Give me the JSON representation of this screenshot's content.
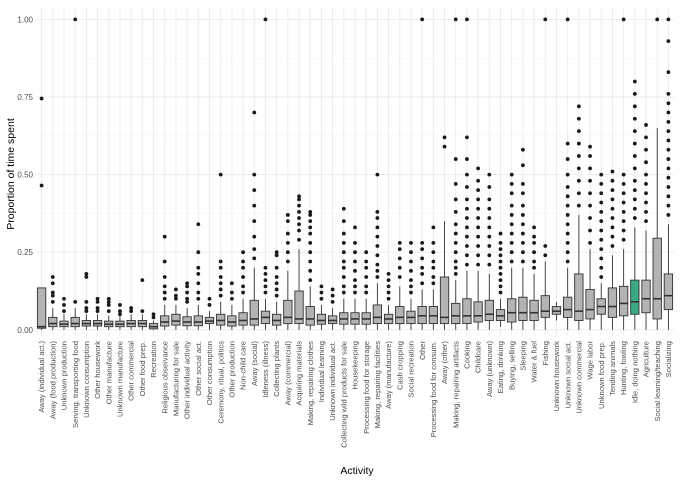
{
  "chart_data": {
    "type": "boxplot",
    "title": "",
    "xlabel": "Activity",
    "ylabel": "Proportion of time spent",
    "ylim": [
      -0.02,
      1.04
    ],
    "yticks": [
      0.0,
      0.25,
      0.5,
      0.75,
      1.0
    ],
    "ytick_labels": [
      "0.00",
      "0.25",
      "0.50",
      "0.75",
      "1.00"
    ],
    "grid": true,
    "legend": "none",
    "colors": {
      "default_fill": "#b3b3b3",
      "highlight_fill": "#3aaa86",
      "line": "#333333",
      "outlier": "#1a1a1a",
      "background": "#ffffff"
    },
    "highlight": "Idle, doing nothing",
    "categories": [
      "Away (individual act.)",
      "Away (food production)",
      "Unknown production",
      "Serving, transporting food",
      "Unknown consumption",
      "Other housework",
      "Other manufacture",
      "Unknown manufacture",
      "Other commercial",
      "Other food prep.",
      "Recreation",
      "Religious observance",
      "Manufacturing for sale",
      "Other individual activity",
      "Other social act.",
      "Other consumption",
      "Ceremony, ritual, politics",
      "Other production",
      "Non-child care",
      "Away (social)",
      "Idleness (illness)",
      "Collecting plants",
      "Away (commercial)",
      "Acquiring materials",
      "Making, repairing clothes",
      "Individual learning",
      "Unknown individual act.",
      "Collecting wild products for sale",
      "Housekeeping",
      "Processing food for storage",
      "Making, repairing facilities",
      "Away (manufacture)",
      "Cash cropping",
      "Social recreation",
      "Other",
      "Processing food for consum.",
      "Away (other)",
      "Making, repairing artifacts",
      "Cooking",
      "Childcare",
      "Away (unknown)",
      "Eating, drinking",
      "Buying, selling",
      "Sleeping",
      "Water & fuel",
      "Fishing",
      "Unknown housework",
      "Unknown social act.",
      "Unknown commercial",
      "Wage labor",
      "Unknown food prep.",
      "Tending animals",
      "Hunting, fowling",
      "Idle, doing nothing",
      "Agriculture",
      "Social learning/teaching",
      "Socializing"
    ],
    "series": [
      {
        "name": "Away (individual act.)",
        "min": 0.0,
        "q1": 0.005,
        "median": 0.01,
        "q3": 0.135,
        "max": 0.135,
        "outliers": [
          0.465,
          0.745
        ]
      },
      {
        "name": "Away (food production)",
        "min": 0.0,
        "q1": 0.01,
        "median": 0.02,
        "q3": 0.04,
        "max": 0.07,
        "outliers": [
          0.09,
          0.11,
          0.12,
          0.15,
          0.17
        ]
      },
      {
        "name": "Unknown production",
        "min": 0.0,
        "q1": 0.01,
        "median": 0.018,
        "q3": 0.028,
        "max": 0.05,
        "outliers": [
          0.06,
          0.08,
          0.1
        ]
      },
      {
        "name": "Serving, transporting food",
        "min": 0.0,
        "q1": 0.01,
        "median": 0.02,
        "q3": 0.04,
        "max": 0.07,
        "outliers": [
          0.09,
          1.0
        ]
      },
      {
        "name": "Unknown consumption",
        "min": 0.0,
        "q1": 0.012,
        "median": 0.02,
        "q3": 0.03,
        "max": 0.05,
        "outliers": [
          0.06,
          0.07,
          0.09,
          0.17,
          0.18
        ]
      },
      {
        "name": "Other housework",
        "min": 0.0,
        "q1": 0.012,
        "median": 0.02,
        "q3": 0.03,
        "max": 0.05,
        "outliers": [
          0.06,
          0.07,
          0.09,
          0.1
        ]
      },
      {
        "name": "Other manufacture",
        "min": 0.0,
        "q1": 0.01,
        "median": 0.018,
        "q3": 0.028,
        "max": 0.045,
        "outliers": [
          0.06,
          0.08,
          0.09,
          0.1
        ]
      },
      {
        "name": "Unknown manufacture",
        "min": 0.0,
        "q1": 0.01,
        "median": 0.018,
        "q3": 0.028,
        "max": 0.045,
        "outliers": [
          0.05,
          0.06,
          0.08
        ]
      },
      {
        "name": "Other commercial",
        "min": 0.0,
        "q1": 0.01,
        "median": 0.02,
        "q3": 0.03,
        "max": 0.05,
        "outliers": [
          0.06,
          0.07
        ]
      },
      {
        "name": "Other food prep.",
        "min": 0.0,
        "q1": 0.01,
        "median": 0.02,
        "q3": 0.03,
        "max": 0.05,
        "outliers": [
          0.06,
          0.16
        ]
      },
      {
        "name": "Recreation",
        "min": 0.0,
        "q1": 0.003,
        "median": 0.01,
        "q3": 0.02,
        "max": 0.03,
        "outliers": [
          0.04,
          0.05
        ]
      },
      {
        "name": "Religious observance",
        "min": 0.0,
        "q1": 0.012,
        "median": 0.025,
        "q3": 0.045,
        "max": 0.08,
        "outliers": [
          0.1,
          0.12,
          0.14,
          0.17,
          0.22,
          0.3
        ]
      },
      {
        "name": "Manufacturing for sale",
        "min": 0.0,
        "q1": 0.015,
        "median": 0.028,
        "q3": 0.05,
        "max": 0.08,
        "outliers": [
          0.1,
          0.11,
          0.13
        ]
      },
      {
        "name": "Other individual activity",
        "min": 0.0,
        "q1": 0.013,
        "median": 0.025,
        "q3": 0.042,
        "max": 0.07,
        "outliers": [
          0.09,
          0.1,
          0.12,
          0.14,
          0.15
        ]
      },
      {
        "name": "Other social act.",
        "min": 0.0,
        "q1": 0.013,
        "median": 0.025,
        "q3": 0.045,
        "max": 0.08,
        "outliers": [
          0.1,
          0.12,
          0.15,
          0.18,
          0.2,
          0.25,
          0.34
        ]
      },
      {
        "name": "Other consumption",
        "min": 0.0,
        "q1": 0.02,
        "median": 0.028,
        "q3": 0.04,
        "max": 0.06,
        "outliers": [
          0.08,
          0.1
        ]
      },
      {
        "name": "Ceremony, ritual, politics",
        "min": 0.0,
        "q1": 0.015,
        "median": 0.03,
        "q3": 0.05,
        "max": 0.09,
        "outliers": [
          0.11,
          0.13,
          0.15,
          0.17,
          0.2,
          0.22,
          0.5
        ]
      },
      {
        "name": "Other production",
        "min": 0.0,
        "q1": 0.012,
        "median": 0.025,
        "q3": 0.045,
        "max": 0.08,
        "outliers": [
          0.1,
          0.12,
          0.15
        ]
      },
      {
        "name": "Non-child care",
        "min": 0.0,
        "q1": 0.015,
        "median": 0.03,
        "q3": 0.055,
        "max": 0.1,
        "outliers": [
          0.12,
          0.14,
          0.17,
          0.2,
          0.22,
          0.25
        ]
      },
      {
        "name": "Away (social)",
        "min": 0.0,
        "q1": 0.015,
        "median": 0.035,
        "q3": 0.095,
        "max": 0.2,
        "outliers": [
          0.23,
          0.26,
          0.3,
          0.35,
          0.4,
          0.45,
          0.5,
          0.7
        ]
      },
      {
        "name": "Idleness (illness)",
        "min": 0.0,
        "q1": 0.02,
        "median": 0.04,
        "q3": 0.06,
        "max": 0.1,
        "outliers": [
          0.12,
          0.14,
          0.16,
          0.18,
          0.2,
          1.0
        ]
      },
      {
        "name": "Collecting plants",
        "min": 0.0,
        "q1": 0.015,
        "median": 0.03,
        "q3": 0.05,
        "max": 0.09,
        "outliers": [
          0.11,
          0.13,
          0.15,
          0.17,
          0.2,
          0.24,
          0.25
        ]
      },
      {
        "name": "Away (commercial)",
        "min": 0.0,
        "q1": 0.02,
        "median": 0.04,
        "q3": 0.095,
        "max": 0.19,
        "outliers": [
          0.22,
          0.25,
          0.28,
          0.31,
          0.35,
          0.37
        ]
      },
      {
        "name": "Acquiring materials",
        "min": 0.0,
        "q1": 0.02,
        "median": 0.035,
        "q3": 0.125,
        "max": 0.26,
        "outliers": [
          0.29,
          0.32,
          0.34,
          0.36,
          0.38,
          0.4,
          0.42,
          0.43
        ]
      },
      {
        "name": "Making, repairing clothes",
        "min": 0.0,
        "q1": 0.015,
        "median": 0.035,
        "q3": 0.075,
        "max": 0.14,
        "outliers": [
          0.16,
          0.19,
          0.22,
          0.25,
          0.28,
          0.31,
          0.33,
          0.35,
          0.37,
          0.38
        ]
      },
      {
        "name": "Individual learning",
        "min": 0.0,
        "q1": 0.018,
        "median": 0.03,
        "q3": 0.05,
        "max": 0.08,
        "outliers": [
          0.1,
          0.12,
          0.14
        ]
      },
      {
        "name": "Unknown individual act.",
        "min": 0.0,
        "q1": 0.02,
        "median": 0.03,
        "q3": 0.045,
        "max": 0.07,
        "outliers": [
          0.09,
          0.11,
          0.13
        ]
      },
      {
        "name": "Collecting wild products for sale",
        "min": 0.0,
        "q1": 0.018,
        "median": 0.035,
        "q3": 0.055,
        "max": 0.1,
        "outliers": [
          0.12,
          0.14,
          0.17,
          0.2,
          0.22,
          0.25,
          0.28,
          0.31,
          0.35,
          0.39
        ]
      },
      {
        "name": "Housekeeping",
        "min": 0.0,
        "q1": 0.018,
        "median": 0.035,
        "q3": 0.055,
        "max": 0.1,
        "outliers": [
          0.12,
          0.14,
          0.16,
          0.19,
          0.22,
          0.25,
          0.28,
          0.33
        ]
      },
      {
        "name": "Processing food for storage",
        "min": 0.0,
        "q1": 0.018,
        "median": 0.035,
        "q3": 0.055,
        "max": 0.1,
        "outliers": [
          0.12,
          0.14,
          0.17,
          0.2,
          0.22,
          0.25
        ]
      },
      {
        "name": "Making, repairing facilities",
        "min": 0.0,
        "q1": 0.02,
        "median": 0.04,
        "q3": 0.08,
        "max": 0.15,
        "outliers": [
          0.17,
          0.19,
          0.21,
          0.24,
          0.27,
          0.3,
          0.33,
          0.36,
          0.38,
          0.5
        ]
      },
      {
        "name": "Away (manufacture)",
        "min": 0.0,
        "q1": 0.02,
        "median": 0.035,
        "q3": 0.05,
        "max": 0.08,
        "outliers": [
          0.1,
          0.12,
          0.14,
          0.16,
          0.18
        ]
      },
      {
        "name": "Cash cropping",
        "min": 0.0,
        "q1": 0.02,
        "median": 0.04,
        "q3": 0.075,
        "max": 0.14,
        "outliers": [
          0.17,
          0.2,
          0.23,
          0.26,
          0.28
        ]
      },
      {
        "name": "Social recreation",
        "min": 0.0,
        "q1": 0.02,
        "median": 0.04,
        "q3": 0.06,
        "max": 0.1,
        "outliers": [
          0.12,
          0.14,
          0.16,
          0.19,
          0.22,
          0.25,
          0.28
        ]
      },
      {
        "name": "Other",
        "min": 0.0,
        "q1": 0.02,
        "median": 0.045,
        "q3": 0.075,
        "max": 0.13,
        "outliers": [
          0.15,
          0.18,
          0.2,
          0.23,
          0.26,
          0.28,
          1.0
        ]
      },
      {
        "name": "Processing food for consum.",
        "min": 0.0,
        "q1": 0.02,
        "median": 0.045,
        "q3": 0.075,
        "max": 0.13,
        "outliers": [
          0.15,
          0.17,
          0.2,
          0.22,
          0.25,
          0.28,
          0.33
        ]
      },
      {
        "name": "Away (other)",
        "min": 0.0,
        "q1": 0.02,
        "median": 0.04,
        "q3": 0.17,
        "max": 0.35,
        "outliers": [
          0.59,
          0.62
        ]
      },
      {
        "name": "Making, repairing artifacts",
        "min": 0.0,
        "q1": 0.02,
        "median": 0.045,
        "q3": 0.085,
        "max": 0.16,
        "outliers": [
          0.18,
          0.2,
          0.22,
          0.25,
          0.28,
          0.31,
          0.34,
          0.38,
          0.42,
          0.47,
          0.55,
          1.0
        ]
      },
      {
        "name": "Cooking",
        "min": 0.0,
        "q1": 0.02,
        "median": 0.045,
        "q3": 0.1,
        "max": 0.19,
        "outliers": [
          0.21,
          0.24,
          0.27,
          0.3,
          0.33,
          0.36,
          0.39,
          0.42,
          0.46,
          0.5,
          0.55,
          0.62,
          1.0
        ]
      },
      {
        "name": "Childcare",
        "min": 0.0,
        "q1": 0.025,
        "median": 0.045,
        "q3": 0.09,
        "max": 0.19,
        "outliers": [
          0.21,
          0.24,
          0.27,
          0.3,
          0.33,
          0.36,
          0.39,
          0.42,
          0.45,
          0.48,
          0.52
        ]
      },
      {
        "name": "Away (unknown)",
        "min": 0.0,
        "q1": 0.03,
        "median": 0.05,
        "q3": 0.095,
        "max": 0.18,
        "outliers": [
          0.21,
          0.24,
          0.27,
          0.3,
          0.33,
          0.36,
          0.39,
          0.42,
          0.46,
          0.5
        ]
      },
      {
        "name": "Eating, drinking",
        "min": 0.01,
        "q1": 0.03,
        "median": 0.045,
        "q3": 0.065,
        "max": 0.1,
        "outliers": [
          0.12,
          0.14,
          0.16,
          0.18,
          0.2,
          0.22,
          0.24,
          0.26,
          0.28,
          0.31
        ]
      },
      {
        "name": "Buying, selling",
        "min": 0.0,
        "q1": 0.025,
        "median": 0.055,
        "q3": 0.1,
        "max": 0.2,
        "outliers": [
          0.22,
          0.25,
          0.28,
          0.31,
          0.34,
          0.37,
          0.4,
          0.44,
          0.47,
          0.5
        ]
      },
      {
        "name": "Sleeping",
        "min": 0.0,
        "q1": 0.03,
        "median": 0.055,
        "q3": 0.105,
        "max": 0.2,
        "outliers": [
          0.22,
          0.25,
          0.28,
          0.31,
          0.34,
          0.37,
          0.4,
          0.44,
          0.47,
          0.53,
          0.58
        ]
      },
      {
        "name": "Water & fuel",
        "min": 0.0,
        "q1": 0.03,
        "median": 0.055,
        "q3": 0.095,
        "max": 0.18,
        "outliers": [
          0.2,
          0.22,
          0.25,
          0.28,
          0.3,
          0.33
        ]
      },
      {
        "name": "Fishing",
        "min": 0.0,
        "q1": 0.04,
        "median": 0.06,
        "q3": 0.11,
        "max": 0.22,
        "outliers": [
          0.24,
          0.27,
          1.0
        ]
      },
      {
        "name": "Unknown housework",
        "min": 0.03,
        "q1": 0.05,
        "median": 0.06,
        "q3": 0.075,
        "max": 0.09,
        "outliers": []
      },
      {
        "name": "Unknown social act.",
        "min": 0.0,
        "q1": 0.04,
        "median": 0.065,
        "q3": 0.105,
        "max": 0.2,
        "outliers": [
          0.22,
          0.25,
          0.28,
          0.31,
          0.34,
          0.37,
          0.4,
          0.43,
          0.46,
          0.5,
          0.55,
          0.6,
          1.0
        ]
      },
      {
        "name": "Unknown commercial",
        "min": 0.0,
        "q1": 0.03,
        "median": 0.06,
        "q3": 0.18,
        "max": 0.37,
        "outliers": [
          0.4,
          0.44,
          0.48,
          0.52,
          0.56,
          0.6,
          0.64,
          0.68,
          0.72
        ]
      },
      {
        "name": "Wage labor",
        "min": 0.0,
        "q1": 0.035,
        "median": 0.065,
        "q3": 0.13,
        "max": 0.26,
        "outliers": [
          0.28,
          0.32,
          0.36,
          0.4,
          0.44,
          0.48,
          0.52,
          0.56,
          0.59
        ]
      },
      {
        "name": "Unknown food prep.",
        "min": 0.0,
        "q1": 0.05,
        "median": 0.075,
        "q3": 0.1,
        "max": 0.15,
        "outliers": [
          0.17,
          0.2,
          0.23,
          0.26,
          0.29,
          0.32,
          0.35,
          0.38,
          0.41,
          0.44,
          0.47,
          0.5
        ]
      },
      {
        "name": "Tending animals",
        "min": 0.0,
        "q1": 0.04,
        "median": 0.075,
        "q3": 0.135,
        "max": 0.24,
        "outliers": [
          0.27,
          0.3,
          0.33,
          0.36,
          0.39,
          0.42,
          0.45,
          0.48,
          0.51
        ]
      },
      {
        "name": "Hunting, fowling",
        "min": 0.0,
        "q1": 0.045,
        "median": 0.085,
        "q3": 0.14,
        "max": 0.26,
        "outliers": [
          0.29,
          0.32,
          0.35,
          0.38,
          0.41,
          0.44,
          0.47,
          0.5,
          1.0
        ]
      },
      {
        "name": "Idle, doing nothing",
        "min": 0.0,
        "q1": 0.05,
        "median": 0.09,
        "q3": 0.16,
        "max": 0.33,
        "outliers": [
          0.36,
          0.39,
          0.42,
          0.45,
          0.48,
          0.52,
          0.56,
          0.6,
          0.64,
          0.68,
          0.72,
          0.76,
          0.8
        ]
      },
      {
        "name": "Agriculture",
        "min": 0.0,
        "q1": 0.055,
        "median": 0.1,
        "q3": 0.16,
        "max": 0.32,
        "outliers": [
          0.35,
          0.38,
          0.41,
          0.44,
          0.47,
          0.5,
          0.54,
          0.58,
          0.62,
          0.66
        ]
      },
      {
        "name": "Social learning/teaching",
        "min": 0.0,
        "q1": 0.035,
        "median": 0.1,
        "q3": 0.295,
        "max": 0.65,
        "outliers": [
          1.0
        ]
      },
      {
        "name": "Socializing",
        "min": 0.0,
        "q1": 0.065,
        "median": 0.11,
        "q3": 0.18,
        "max": 0.34,
        "outliers": [
          0.37,
          0.4,
          0.43,
          0.46,
          0.49,
          0.52,
          0.55,
          0.58,
          0.61,
          0.64,
          0.67,
          0.7,
          0.73,
          0.76,
          0.83,
          0.93,
          1.0
        ]
      }
    ]
  }
}
